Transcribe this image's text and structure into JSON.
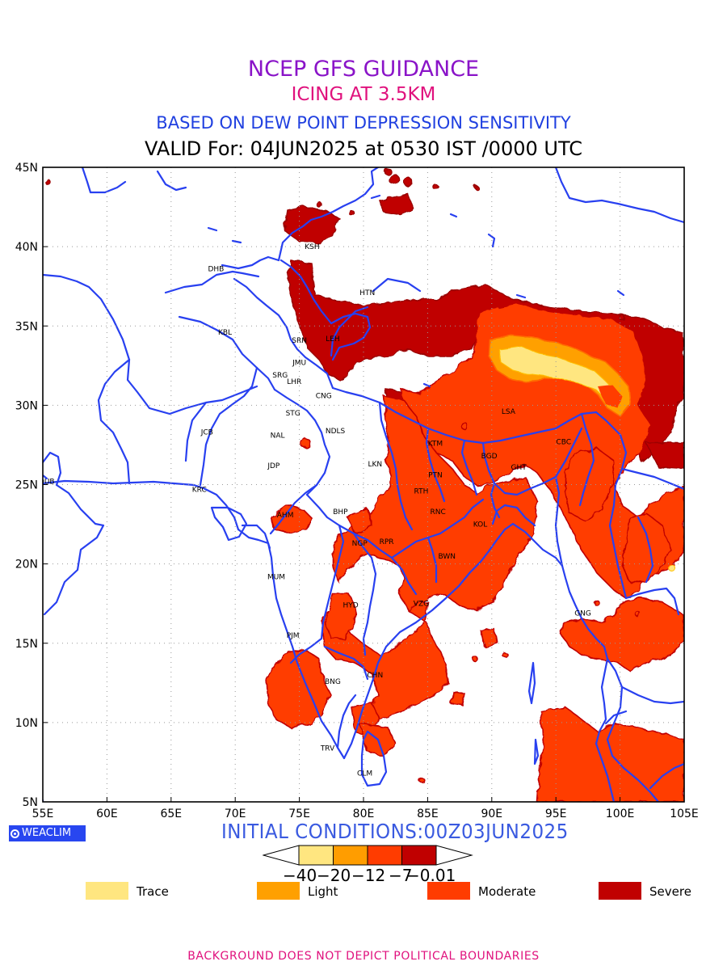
{
  "header": {
    "title": "NCEP GFS GUIDANCE",
    "subtitle": "ICING AT 3.5KM",
    "method": "BASED ON DEW POINT DEPRESSION SENSITIVITY",
    "valid": "VALID For: 04JUN2025 at 0530 IST /0000 UTC",
    "colors": {
      "title": "#8a14c8",
      "subtitle": "#e0117d",
      "method": "#2040e0"
    }
  },
  "map": {
    "lon_range": [
      55,
      105
    ],
    "lat_range": [
      5,
      45
    ],
    "lon_ticks": [
      "55E",
      "60E",
      "65E",
      "70E",
      "75E",
      "80E",
      "85E",
      "90E",
      "95E",
      "100E",
      "105E"
    ],
    "lat_ticks": [
      "5N",
      "10N",
      "15N",
      "20N",
      "25N",
      "30N",
      "35N",
      "40N",
      "45N"
    ],
    "grid": true,
    "cities": [
      {
        "name": "KSH",
        "lon": 76.0,
        "lat": 40.0
      },
      {
        "name": "DHB",
        "lon": 68.5,
        "lat": 38.6
      },
      {
        "name": "HTN",
        "lon": 80.3,
        "lat": 37.1
      },
      {
        "name": "KBL",
        "lon": 69.2,
        "lat": 34.6
      },
      {
        "name": "SRN",
        "lon": 75.0,
        "lat": 34.1
      },
      {
        "name": "LEH",
        "lon": 77.6,
        "lat": 34.2
      },
      {
        "name": "JMU",
        "lon": 75.0,
        "lat": 32.7
      },
      {
        "name": "SRG",
        "lon": 73.5,
        "lat": 31.9
      },
      {
        "name": "LHR",
        "lon": 74.6,
        "lat": 31.5
      },
      {
        "name": "CNG",
        "lon": 76.9,
        "lat": 30.6
      },
      {
        "name": "LSA",
        "lon": 91.3,
        "lat": 29.6
      },
      {
        "name": "STG",
        "lon": 74.5,
        "lat": 29.5
      },
      {
        "name": "JCB",
        "lon": 67.8,
        "lat": 28.3
      },
      {
        "name": "NAL",
        "lon": 73.3,
        "lat": 28.1
      },
      {
        "name": "NDLS",
        "lon": 77.8,
        "lat": 28.4
      },
      {
        "name": "KTM",
        "lon": 85.6,
        "lat": 27.6
      },
      {
        "name": "CBC",
        "lon": 95.6,
        "lat": 27.7
      },
      {
        "name": "BGD",
        "lon": 89.8,
        "lat": 26.8
      },
      {
        "name": "LKN",
        "lon": 80.9,
        "lat": 26.3
      },
      {
        "name": "JDP",
        "lon": 73.0,
        "lat": 26.2
      },
      {
        "name": "GHT",
        "lon": 92.1,
        "lat": 26.1
      },
      {
        "name": "DUB",
        "lon": 55.3,
        "lat": 25.2
      },
      {
        "name": "PTN",
        "lon": 85.6,
        "lat": 25.6
      },
      {
        "name": "KRC",
        "lon": 67.2,
        "lat": 24.7
      },
      {
        "name": "RTH",
        "lon": 84.5,
        "lat": 24.6
      },
      {
        "name": "BHP",
        "lon": 78.2,
        "lat": 23.3
      },
      {
        "name": "RNC",
        "lon": 85.8,
        "lat": 23.3
      },
      {
        "name": "AHM",
        "lon": 73.9,
        "lat": 23.1
      },
      {
        "name": "KOL",
        "lon": 89.1,
        "lat": 22.5
      },
      {
        "name": "NGP",
        "lon": 79.7,
        "lat": 21.3
      },
      {
        "name": "RPR",
        "lon": 81.8,
        "lat": 21.4
      },
      {
        "name": "BWN",
        "lon": 86.5,
        "lat": 20.5
      },
      {
        "name": "MUM",
        "lon": 73.2,
        "lat": 19.2
      },
      {
        "name": "VZG",
        "lon": 84.5,
        "lat": 17.5
      },
      {
        "name": "HYD",
        "lon": 79.0,
        "lat": 17.4
      },
      {
        "name": "GNG",
        "lon": 97.1,
        "lat": 16.9
      },
      {
        "name": "PJM",
        "lon": 74.5,
        "lat": 15.5
      },
      {
        "name": "CHN",
        "lon": 80.9,
        "lat": 13.0
      },
      {
        "name": "BNG",
        "lon": 77.6,
        "lat": 12.6
      },
      {
        "name": "TRV",
        "lon": 77.2,
        "lat": 8.4
      },
      {
        "name": "CLM",
        "lon": 80.1,
        "lat": 6.8
      }
    ]
  },
  "badge": {
    "label": "WEACLIM",
    "icon": "globe-icon"
  },
  "initial": {
    "text": "INITIAL CONDITIONS:00Z03JUN2025",
    "color": "#3a5ae0"
  },
  "colorbar": {
    "tick_labels": [
      "−40",
      "−20",
      "−12",
      "−7",
      "−0.01"
    ],
    "colors": [
      "#ffe680",
      "#ff9d00",
      "#ff3c00",
      "#c00000"
    ]
  },
  "legend": [
    {
      "label": "Trace",
      "color": "#ffe680"
    },
    {
      "label": "Light",
      "color": "#ffa000"
    },
    {
      "label": "Moderate",
      "color": "#ff3c00"
    },
    {
      "label": "Severe",
      "color": "#c00000"
    }
  ],
  "footer": {
    "text": "BACKGROUND DOES NOT DEPICT POLITICAL BOUNDARIES",
    "color": "#e0117d"
  }
}
